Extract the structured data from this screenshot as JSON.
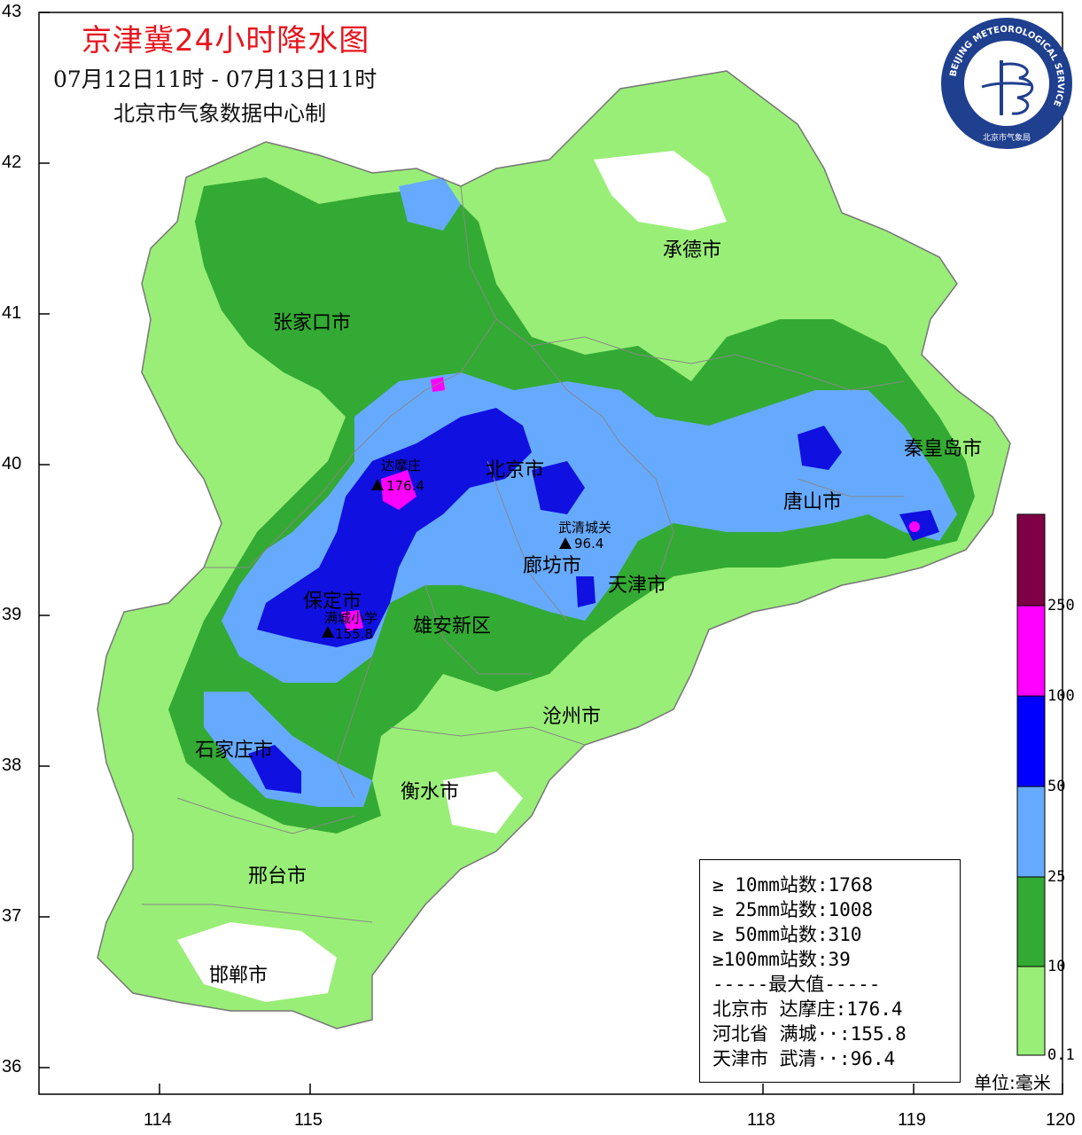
{
  "header": {
    "title": "京津冀24小时降水图",
    "subtitle": "07月12日11时 - 07月13日11时",
    "source": "北京市气象数据中心制"
  },
  "logo": {
    "text_ring": "BEIJING METEOROLOGICAL SERVICE",
    "text_bottom": "北京市气象局",
    "color": "#1f3f8f"
  },
  "axes": {
    "y_ticks": [
      "43",
      "42",
      "41",
      "40",
      "39",
      "38",
      "37",
      "36"
    ],
    "x_ticks": [
      "114",
      "115",
      "118",
      "119",
      "120"
    ]
  },
  "cities": [
    {
      "name": "承德市"
    },
    {
      "name": "张家口市"
    },
    {
      "name": "北京市"
    },
    {
      "name": "秦皇岛市"
    },
    {
      "name": "唐山市"
    },
    {
      "name": "廊坊市"
    },
    {
      "name": "天津市"
    },
    {
      "name": "保定市"
    },
    {
      "name": "雄安新区"
    },
    {
      "name": "沧州市"
    },
    {
      "name": "石家庄市"
    },
    {
      "name": "衡水市"
    },
    {
      "name": "邢台市"
    },
    {
      "name": "邯郸市"
    }
  ],
  "stations": [
    {
      "name": "达摩庄",
      "value": "176.4"
    },
    {
      "name": "武清城关",
      "value": "96.4"
    },
    {
      "name": "满城小学",
      "value": "155.8"
    }
  ],
  "stats": {
    "lines": [
      "≥ 10mm站数:1768",
      "≥ 25mm站数:1008",
      "≥ 50mm站数:310",
      "≥100mm站数:39",
      "-----最大值-----",
      "北京市 达摩庄:176.4",
      "河北省 满城··:155.8",
      "天津市 武清··:96.4"
    ]
  },
  "colorbar": {
    "labels": [
      "250",
      "100",
      "50",
      "25",
      "10",
      "0.1"
    ],
    "colors": [
      "#7f0045",
      "#ff00ff",
      "#0000ff",
      "#66aaff",
      "#33aa33",
      "#99ee77"
    ],
    "unit": "单位:毫米"
  }
}
